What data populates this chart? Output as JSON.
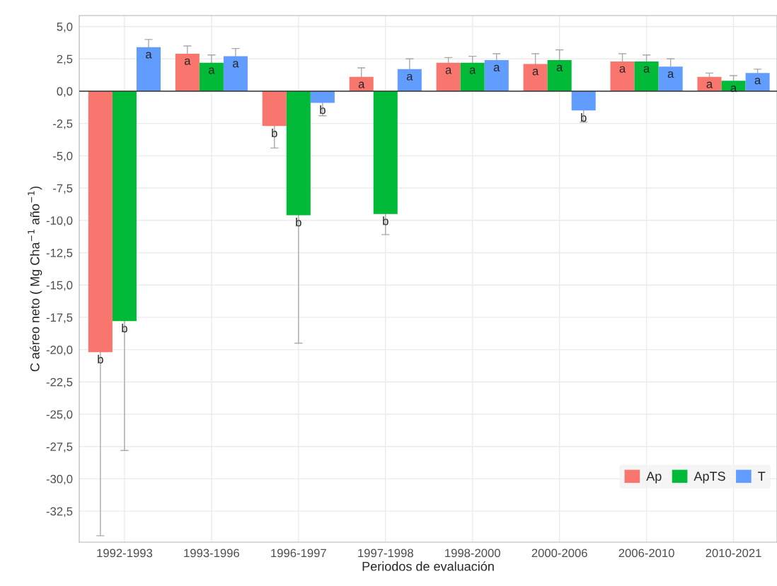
{
  "chart_data": {
    "type": "bar",
    "xlabel": "Periodos de evaluación",
    "ylabel": "C aéreo neto ( Mg Cha$^{−1}$ año$^{−1}$)",
    "categories": [
      "1992-1993",
      "1993-1996",
      "1996-1997",
      "1997-1998",
      "1998-2000",
      "2000-2006",
      "2006-2010",
      "2010-2021"
    ],
    "series": [
      {
        "name": "Ap",
        "color": "#f8766d",
        "values": [
          -20.2,
          2.9,
          -2.7,
          1.1,
          2.2,
          2.1,
          2.3,
          1.1
        ],
        "errors": [
          [
            -34.4,
            -20.2
          ],
          [
            2.9,
            3.5
          ],
          [
            -4.4,
            -2.7
          ],
          [
            1.1,
            1.8
          ],
          [
            2.2,
            2.6
          ],
          [
            2.1,
            2.9
          ],
          [
            2.3,
            2.9
          ],
          [
            1.1,
            1.4
          ]
        ],
        "value_labels": [
          "b",
          "a",
          "b",
          "a",
          "a",
          "a",
          "a",
          "a"
        ]
      },
      {
        "name": "ApTS",
        "color": "#00ba38",
        "values": [
          -17.8,
          2.2,
          -9.6,
          -9.5,
          2.2,
          2.4,
          2.3,
          0.8
        ],
        "errors": [
          [
            -27.8,
            -17.8
          ],
          [
            2.2,
            2.8
          ],
          [
            -19.5,
            -9.6
          ],
          [
            -11.1,
            -9.5
          ],
          [
            2.2,
            2.7
          ],
          [
            2.4,
            3.2
          ],
          [
            2.3,
            2.8
          ],
          [
            0.8,
            1.2
          ]
        ],
        "value_labels": [
          "b",
          "a",
          "b",
          "b",
          "a",
          "a",
          "a",
          "a"
        ]
      },
      {
        "name": "T",
        "color": "#619cff",
        "values": [
          3.4,
          2.7,
          -0.9,
          1.7,
          2.4,
          -1.5,
          1.9,
          1.4
        ],
        "errors": [
          [
            3.4,
            4.0
          ],
          [
            2.7,
            3.3
          ],
          [
            -1.9,
            -0.9
          ],
          [
            1.7,
            2.5
          ],
          [
            2.4,
            2.9
          ],
          [
            -2.4,
            -1.5
          ],
          [
            1.9,
            2.5
          ],
          [
            1.4,
            1.7
          ]
        ],
        "value_labels": [
          "a",
          "a",
          "b",
          "a",
          "a",
          "b",
          "a",
          "a"
        ]
      }
    ],
    "ylim": [
      -34.9,
      5.85
    ],
    "yticks": [
      {
        "value": 5,
        "label": "5,0"
      },
      {
        "value": 2.5,
        "label": "2,5"
      },
      {
        "value": 0,
        "label": "0,0"
      },
      {
        "value": -2.5,
        "label": "-2,5"
      },
      {
        "value": -5,
        "label": "-5,0"
      },
      {
        "value": -7.5,
        "label": "-7,5"
      },
      {
        "value": -10,
        "label": "-10,0"
      },
      {
        "value": -12.5,
        "label": "-12,5"
      },
      {
        "value": -15,
        "label": "-15,0"
      },
      {
        "value": -17.5,
        "label": "-17,5"
      },
      {
        "value": -20,
        "label": "-20,0"
      },
      {
        "value": -22.5,
        "label": "-22,5"
      },
      {
        "value": -25,
        "label": "-25,0"
      },
      {
        "value": -27.5,
        "label": "-27,5"
      },
      {
        "value": -30,
        "label": "-30,0"
      },
      {
        "value": -32.5,
        "label": "-32,5"
      }
    ],
    "ref_lines": [
      {
        "axis": "y",
        "value": 0,
        "color": "#333333"
      }
    ],
    "grid": true,
    "legend": "bottom right"
  }
}
